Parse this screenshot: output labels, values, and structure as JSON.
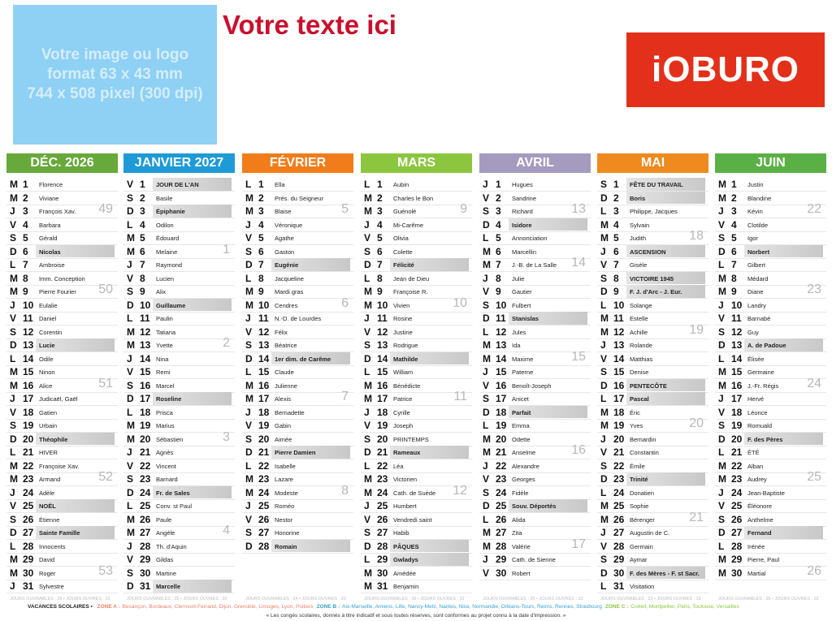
{
  "header": {
    "image_placeholder": [
      "Votre image ou logo",
      "format 63 x 43 mm",
      "744 x 508 pixel (300 dpi)"
    ],
    "title": "Votre texte ici",
    "logo": "iOBURO"
  },
  "months": [
    {
      "name": "DÉC. 2026",
      "color": "#67a93b",
      "footer": "JOURS OUVRABLES : 26 • JOURS OUVRÉS : 22",
      "weeks": [
        "49",
        "50",
        "51",
        "52",
        "53"
      ],
      "days": [
        [
          "M",
          "1",
          "Florence"
        ],
        [
          "M",
          "2",
          "Viviane"
        ],
        [
          "J",
          "3",
          "François Xav."
        ],
        [
          "V",
          "4",
          "Barbara"
        ],
        [
          "S",
          "5",
          "Gérald"
        ],
        [
          "D",
          "6",
          "Nicolas"
        ],
        [
          "L",
          "7",
          "Ambroise"
        ],
        [
          "M",
          "8",
          "Imm. Conception"
        ],
        [
          "M",
          "9",
          "Pierre Fourier"
        ],
        [
          "J",
          "10",
          "Eulalie"
        ],
        [
          "V",
          "11",
          "Daniel"
        ],
        [
          "S",
          "12",
          "Corentin"
        ],
        [
          "D",
          "13",
          "Lucie"
        ],
        [
          "L",
          "14",
          "Odile"
        ],
        [
          "M",
          "15",
          "Ninon"
        ],
        [
          "M",
          "16",
          "Alice"
        ],
        [
          "J",
          "17",
          "Judicaël, Gaël"
        ],
        [
          "V",
          "18",
          "Gatien"
        ],
        [
          "S",
          "19",
          "Urbain"
        ],
        [
          "D",
          "20",
          "Théophile"
        ],
        [
          "L",
          "21",
          "HIVER"
        ],
        [
          "M",
          "22",
          "Françoise Xav."
        ],
        [
          "M",
          "23",
          "Armand"
        ],
        [
          "J",
          "24",
          "Adèle"
        ],
        [
          "V",
          "25",
          "NOËL",
          true
        ],
        [
          "S",
          "26",
          "Étienne"
        ],
        [
          "D",
          "27",
          "Sainte Famille"
        ],
        [
          "L",
          "28",
          "Innocents"
        ],
        [
          "M",
          "29",
          "David"
        ],
        [
          "M",
          "30",
          "Roger"
        ],
        [
          "J",
          "31",
          "Sylvestre"
        ]
      ]
    },
    {
      "name": "JANVIER 2027",
      "color": "#1e9ad6",
      "footer": "JOURS OUVRABLES : 25 • JOURS OUVRÉS : 20",
      "weeks": [
        "1",
        "2",
        "3",
        "4"
      ],
      "days": [
        [
          "V",
          "1",
          "JOUR DE L'AN",
          true
        ],
        [
          "S",
          "2",
          "Basile"
        ],
        [
          "D",
          "3",
          "Épiphanie"
        ],
        [
          "L",
          "4",
          "Odilon"
        ],
        [
          "M",
          "5",
          "Édouard"
        ],
        [
          "M",
          "6",
          "Melaine"
        ],
        [
          "J",
          "7",
          "Raymond"
        ],
        [
          "V",
          "8",
          "Lucien"
        ],
        [
          "S",
          "9",
          "Alix"
        ],
        [
          "D",
          "10",
          "Guillaume"
        ],
        [
          "L",
          "11",
          "Paulin"
        ],
        [
          "M",
          "12",
          "Tatiana"
        ],
        [
          "M",
          "13",
          "Yvette"
        ],
        [
          "J",
          "14",
          "Nina"
        ],
        [
          "V",
          "15",
          "Remi"
        ],
        [
          "S",
          "16",
          "Marcel"
        ],
        [
          "D",
          "17",
          "Roseline"
        ],
        [
          "L",
          "18",
          "Prisca"
        ],
        [
          "M",
          "19",
          "Marius"
        ],
        [
          "M",
          "20",
          "Sébastien"
        ],
        [
          "J",
          "21",
          "Agnès"
        ],
        [
          "V",
          "22",
          "Vincent"
        ],
        [
          "S",
          "23",
          "Barnard"
        ],
        [
          "D",
          "24",
          "Fr. de Sales"
        ],
        [
          "L",
          "25",
          "Conv. st Paul"
        ],
        [
          "M",
          "26",
          "Paule"
        ],
        [
          "M",
          "27",
          "Angèle"
        ],
        [
          "J",
          "28",
          "Th. d'Aquin"
        ],
        [
          "V",
          "29",
          "Gildas"
        ],
        [
          "S",
          "30",
          "Martine"
        ],
        [
          "D",
          "31",
          "Marcelle"
        ]
      ]
    },
    {
      "name": "FÉVRIER",
      "color": "#f07d1a",
      "footer": "JOURS OUVRABLES : 24 • JOURS OUVRÉS : 20",
      "weeks": [
        "5",
        "6",
        "7",
        "8"
      ],
      "days": [
        [
          "L",
          "1",
          "Ella"
        ],
        [
          "M",
          "2",
          "Prés. du Seigneur"
        ],
        [
          "M",
          "3",
          "Blaise"
        ],
        [
          "J",
          "4",
          "Véronique"
        ],
        [
          "V",
          "5",
          "Agathe"
        ],
        [
          "S",
          "6",
          "Gaston"
        ],
        [
          "D",
          "7",
          "Eugénie"
        ],
        [
          "L",
          "8",
          "Jacqueline"
        ],
        [
          "M",
          "9",
          "Mardi gras"
        ],
        [
          "M",
          "10",
          "Cendres"
        ],
        [
          "J",
          "11",
          "N.-D. de Lourdes"
        ],
        [
          "V",
          "12",
          "Félix"
        ],
        [
          "S",
          "13",
          "Béatrice"
        ],
        [
          "D",
          "14",
          "1er dim. de Carême"
        ],
        [
          "L",
          "15",
          "Claude"
        ],
        [
          "M",
          "16",
          "Julienne"
        ],
        [
          "M",
          "17",
          "Alexis"
        ],
        [
          "J",
          "18",
          "Bernadette"
        ],
        [
          "V",
          "19",
          "Gabin"
        ],
        [
          "S",
          "20",
          "Aimée"
        ],
        [
          "D",
          "21",
          "Pierre Damien"
        ],
        [
          "L",
          "22",
          "Isabelle"
        ],
        [
          "M",
          "23",
          "Lazare"
        ],
        [
          "M",
          "24",
          "Modeste"
        ],
        [
          "J",
          "25",
          "Roméo"
        ],
        [
          "V",
          "26",
          "Nestor"
        ],
        [
          "S",
          "27",
          "Honorine"
        ],
        [
          "D",
          "28",
          "Romain"
        ]
      ]
    },
    {
      "name": "MARS",
      "color": "#8cc63e",
      "footer": "JOURS OUVRABLES : 26 • JOURS OUVRÉS : 22",
      "weeks": [
        "9",
        "10",
        "11",
        "12"
      ],
      "days": [
        [
          "L",
          "1",
          "Aubin"
        ],
        [
          "M",
          "2",
          "Charles le Bon"
        ],
        [
          "M",
          "3",
          "Guénolé"
        ],
        [
          "J",
          "4",
          "Mi-Carême"
        ],
        [
          "V",
          "5",
          "Olivia"
        ],
        [
          "S",
          "6",
          "Colette"
        ],
        [
          "D",
          "7",
          "Félicité"
        ],
        [
          "L",
          "8",
          "Jean de Dieu"
        ],
        [
          "M",
          "9",
          "Françoise R."
        ],
        [
          "M",
          "10",
          "Vivien"
        ],
        [
          "J",
          "11",
          "Rosine"
        ],
        [
          "V",
          "12",
          "Justine"
        ],
        [
          "S",
          "13",
          "Rodrigue"
        ],
        [
          "D",
          "14",
          "Mathilde"
        ],
        [
          "L",
          "15",
          "William"
        ],
        [
          "M",
          "16",
          "Bénédicte"
        ],
        [
          "M",
          "17",
          "Patrice"
        ],
        [
          "J",
          "18",
          "Cyrille"
        ],
        [
          "V",
          "19",
          "Joseph"
        ],
        [
          "S",
          "20",
          "PRINTEMPS"
        ],
        [
          "D",
          "21",
          "Rameaux"
        ],
        [
          "L",
          "22",
          "Léa"
        ],
        [
          "M",
          "23",
          "Victorien"
        ],
        [
          "M",
          "24",
          "Cath. de Suède"
        ],
        [
          "J",
          "25",
          "Humbert"
        ],
        [
          "V",
          "26",
          "Vendredi saint"
        ],
        [
          "S",
          "27",
          "Habib"
        ],
        [
          "D",
          "28",
          "PÂQUES"
        ],
        [
          "L",
          "29",
          "Gwladys",
          true
        ],
        [
          "M",
          "30",
          "Amédée"
        ],
        [
          "M",
          "31",
          "Benjamin"
        ]
      ]
    },
    {
      "name": "AVRIL",
      "color": "#a59bbf",
      "footer": "JOURS OUVRABLES : 26 • JOURS OUVRÉS : 22",
      "weeks": [
        "13",
        "14",
        "15",
        "16",
        "17"
      ],
      "days": [
        [
          "J",
          "1",
          "Hugues"
        ],
        [
          "V",
          "2",
          "Sandrine"
        ],
        [
          "S",
          "3",
          "Richard"
        ],
        [
          "D",
          "4",
          "Isidore"
        ],
        [
          "L",
          "5",
          "Annonciation"
        ],
        [
          "M",
          "6",
          "Marcellin"
        ],
        [
          "M",
          "7",
          "J.-B. de La Salle"
        ],
        [
          "J",
          "8",
          "Julie"
        ],
        [
          "V",
          "9",
          "Gautier"
        ],
        [
          "S",
          "10",
          "Fulbert"
        ],
        [
          "D",
          "11",
          "Stanislas"
        ],
        [
          "L",
          "12",
          "Jules"
        ],
        [
          "M",
          "13",
          "Ida"
        ],
        [
          "M",
          "14",
          "Maxime"
        ],
        [
          "J",
          "15",
          "Paterne"
        ],
        [
          "V",
          "16",
          "Benoît-Joseph"
        ],
        [
          "S",
          "17",
          "Anicet"
        ],
        [
          "D",
          "18",
          "Parfait"
        ],
        [
          "L",
          "19",
          "Emma"
        ],
        [
          "M",
          "20",
          "Odette"
        ],
        [
          "M",
          "21",
          "Anselme"
        ],
        [
          "J",
          "22",
          "Alexandre"
        ],
        [
          "V",
          "23",
          "Georges"
        ],
        [
          "S",
          "24",
          "Fidèle"
        ],
        [
          "D",
          "25",
          "Souv. Déportés"
        ],
        [
          "L",
          "26",
          "Alida"
        ],
        [
          "M",
          "27",
          "Zita"
        ],
        [
          "M",
          "28",
          "Valérie"
        ],
        [
          "J",
          "29",
          "Cath. de Sienne"
        ],
        [
          "V",
          "30",
          "Robert"
        ]
      ]
    },
    {
      "name": "MAI",
      "color": "#ee8a1e",
      "footer": "JOURS OUVRABLES : 22 • JOURS OUVRÉS : 19",
      "weeks": [
        "18",
        "19",
        "20",
        "21"
      ],
      "days": [
        [
          "S",
          "1",
          "FÊTE DU TRAVAIL",
          true
        ],
        [
          "D",
          "2",
          "Boris"
        ],
        [
          "L",
          "3",
          "Philippe, Jacques"
        ],
        [
          "M",
          "4",
          "Sylvain"
        ],
        [
          "M",
          "5",
          "Judith"
        ],
        [
          "J",
          "6",
          "ASCENSION",
          true
        ],
        [
          "V",
          "7",
          "Gisèle"
        ],
        [
          "S",
          "8",
          "VICTOIRE 1945",
          true
        ],
        [
          "D",
          "9",
          "F. J. d'Arc - J. Eur."
        ],
        [
          "L",
          "10",
          "Solange"
        ],
        [
          "M",
          "11",
          "Estelle"
        ],
        [
          "M",
          "12",
          "Achille"
        ],
        [
          "J",
          "13",
          "Rolande"
        ],
        [
          "V",
          "14",
          "Matthias"
        ],
        [
          "S",
          "15",
          "Denise"
        ],
        [
          "D",
          "16",
          "PENTECÔTE"
        ],
        [
          "L",
          "17",
          "Pascal",
          true
        ],
        [
          "M",
          "18",
          "Éric"
        ],
        [
          "M",
          "19",
          "Yves"
        ],
        [
          "J",
          "20",
          "Bernardin"
        ],
        [
          "V",
          "21",
          "Constantin"
        ],
        [
          "S",
          "22",
          "Émile"
        ],
        [
          "D",
          "23",
          "Trinité"
        ],
        [
          "L",
          "24",
          "Donatien"
        ],
        [
          "M",
          "25",
          "Sophie"
        ],
        [
          "M",
          "26",
          "Bérenger"
        ],
        [
          "J",
          "27",
          "Augustin de C."
        ],
        [
          "V",
          "28",
          "Germain"
        ],
        [
          "S",
          "29",
          "Aymar"
        ],
        [
          "D",
          "30",
          "F. des Mères - F. st Sacr."
        ],
        [
          "L",
          "31",
          "Visitation"
        ]
      ]
    },
    {
      "name": "JUIN",
      "color": "#5bb045",
      "footer": "JOURS OUVRABLES : 26 • JOURS OUVRÉS : 22",
      "weeks": [
        "22",
        "23",
        "24",
        "25",
        "26"
      ],
      "days": [
        [
          "M",
          "1",
          "Justin"
        ],
        [
          "M",
          "2",
          "Blandine"
        ],
        [
          "J",
          "3",
          "Kévin"
        ],
        [
          "V",
          "4",
          "Clotilde"
        ],
        [
          "S",
          "5",
          "Igor"
        ],
        [
          "D",
          "6",
          "Norbert"
        ],
        [
          "L",
          "7",
          "Gilbert"
        ],
        [
          "M",
          "8",
          "Médard"
        ],
        [
          "M",
          "9",
          "Diane"
        ],
        [
          "J",
          "10",
          "Landry"
        ],
        [
          "V",
          "11",
          "Barnabé"
        ],
        [
          "S",
          "12",
          "Guy"
        ],
        [
          "D",
          "13",
          "A. de Padoue"
        ],
        [
          "L",
          "14",
          "Élisée"
        ],
        [
          "M",
          "15",
          "Germaine"
        ],
        [
          "M",
          "16",
          "J.-Fr. Régis"
        ],
        [
          "J",
          "17",
          "Hervé"
        ],
        [
          "V",
          "18",
          "Léonce"
        ],
        [
          "S",
          "19",
          "Romuald"
        ],
        [
          "D",
          "20",
          "F. des Pères"
        ],
        [
          "L",
          "21",
          "ÉTÉ"
        ],
        [
          "M",
          "22",
          "Alban"
        ],
        [
          "M",
          "23",
          "Audrey"
        ],
        [
          "J",
          "24",
          "Jean-Baptiste"
        ],
        [
          "V",
          "25",
          "Éléonore"
        ],
        [
          "S",
          "26",
          "Anthelme"
        ],
        [
          "D",
          "27",
          "Fernand"
        ],
        [
          "L",
          "28",
          "Irénée"
        ],
        [
          "M",
          "29",
          "Pierre, Paul"
        ],
        [
          "M",
          "30",
          "Martial"
        ]
      ]
    }
  ],
  "legend": {
    "label": "VACANCES SCOLAIRES •",
    "zones": [
      {
        "name": "ZONE A :",
        "cities": "Besançon, Bordeaux, Clermont-Ferrand, Dijon, Grenoble, Limoges, Lyon, Poitiers",
        "color": "#e8826a"
      },
      {
        "name": "ZONE B :",
        "cities": "Aix-Marseille, Amiens, Lille, Nancy-Metz, Nantes, Nice, Normandie, Orléans-Tours, Reims, Rennes, Strasbourg",
        "color": "#3aa0c8"
      },
      {
        "name": "ZONE C :",
        "cities": "Créteil, Montpellier, Paris, Toulouse, Versailles",
        "color": "#8cc63e"
      }
    ],
    "note": "« Les congés scolaires, donnés à titre indicatif et sous toutes réserves, sont conformes au projet connu à la date d'impression. »"
  }
}
